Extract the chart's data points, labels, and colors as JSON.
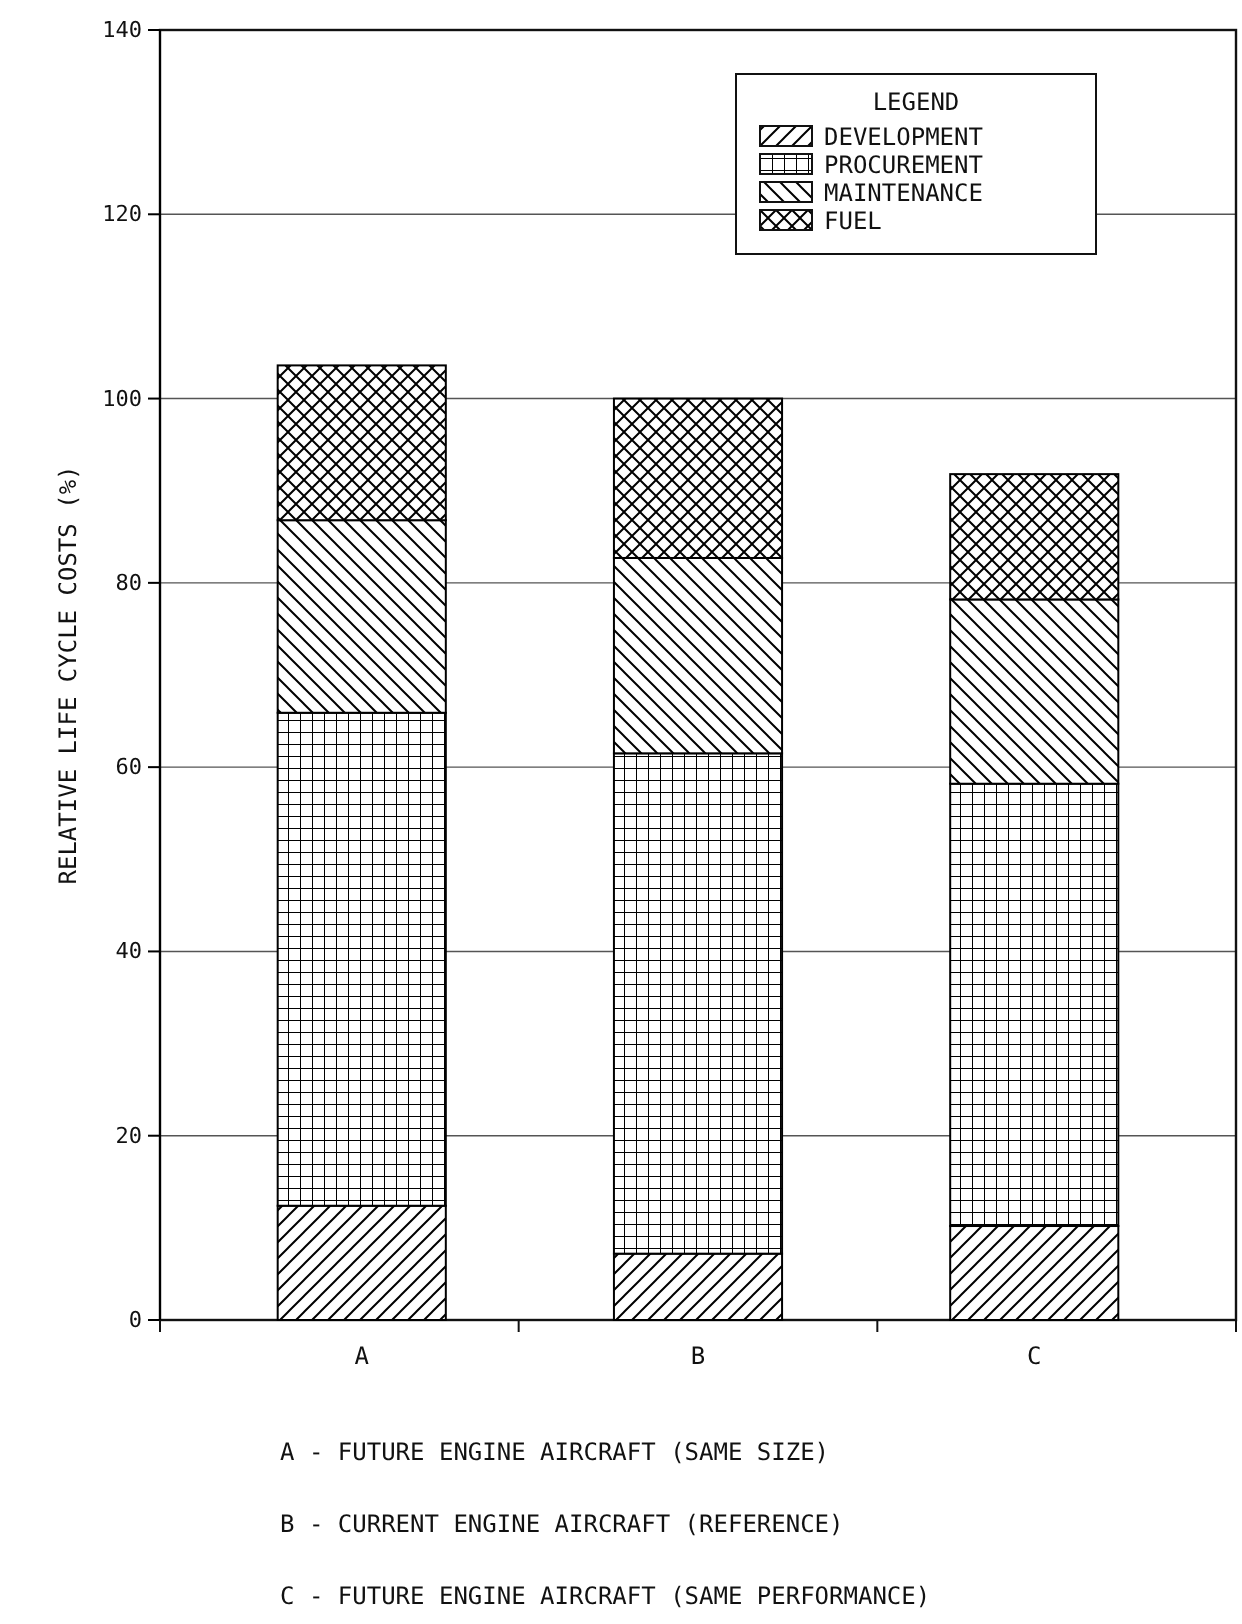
{
  "chart_data": {
    "type": "bar",
    "stacked": true,
    "ylabel": "RELATIVE LIFE CYCLE COSTS (%)",
    "legend_title": "LEGEND",
    "categories": [
      "A",
      "B",
      "C"
    ],
    "series": [
      {
        "name": "DEVELOPMENT",
        "color": "#000000",
        "values": [
          12.4,
          7.2,
          10.2
        ]
      },
      {
        "name": "PROCUREMENT",
        "color": "#000000",
        "values": [
          53.5,
          54.3,
          48.0
        ]
      },
      {
        "name": "MAINTENANCE",
        "color": "#000000",
        "values": [
          20.9,
          21.2,
          20.0
        ]
      },
      {
        "name": "FUEL",
        "color": "#000000",
        "values": [
          16.8,
          17.3,
          13.6
        ]
      }
    ],
    "ylim": [
      0,
      140
    ],
    "yticks": [
      0,
      20,
      40,
      60,
      80,
      100,
      120,
      140
    ],
    "grid": "y",
    "legend": "top right",
    "annotations": [
      "A - FUTURE ENGINE AIRCRAFT (SAME SIZE)",
      "B - CURRENT ENGINE AIRCRAFT (REFERENCE)",
      "C - FUTURE ENGINE AIRCRAFT (SAME PERFORMANCE)"
    ]
  }
}
